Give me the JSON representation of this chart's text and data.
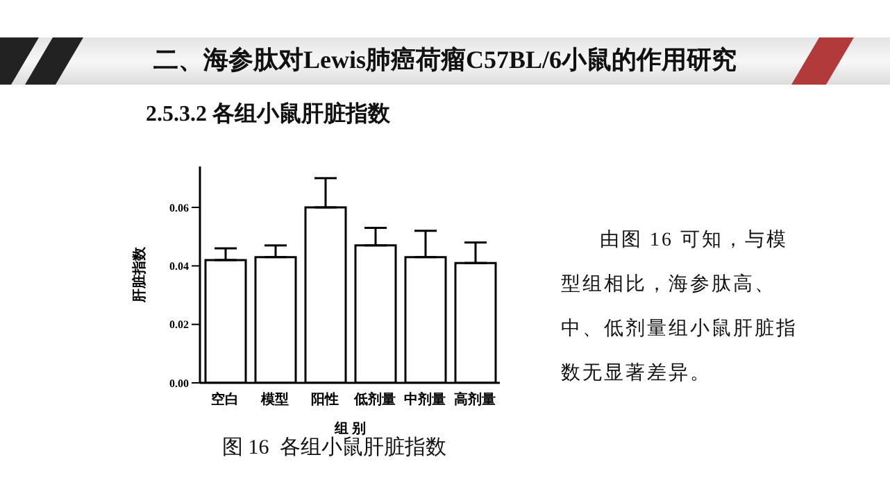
{
  "chart_data": {
    "type": "bar",
    "title": "二、海参肽对Lewis肺癌荷瘤C57BL/6小鼠的作用研究",
    "subtitle": "2.5.3.2 各组小鼠肝脏指数",
    "xlabel": "组 别",
    "ylabel": "肝脏指数",
    "categories": [
      "空白",
      "模型",
      "阳性",
      "低剂量",
      "中剂量",
      "高剂量"
    ],
    "values": [
      0.042,
      0.043,
      0.06,
      0.047,
      0.043,
      0.041
    ],
    "errors": [
      [
        0.042,
        0.046
      ],
      [
        0.043,
        0.047
      ],
      [
        0.06,
        0.07
      ],
      [
        0.047,
        0.053
      ],
      [
        0.043,
        0.052
      ],
      [
        0.041,
        0.048
      ]
    ],
    "color": "#ffffff",
    "ylim": [
      0,
      0.074
    ],
    "yticks": [
      {
        "value": 0,
        "label": "0.00"
      },
      {
        "value": 0.02,
        "label": "0.02"
      },
      {
        "value": 0.04,
        "label": "0.04"
      },
      {
        "value": 0.06,
        "label": "0.06"
      }
    ],
    "grid": false,
    "legend": false,
    "annotations": [
      "图 16  各组小鼠肝脏指数",
      "由图 16 可知，与模型组相比，海参肽高、中、低剂量组小鼠肝脏指数无显著差异。"
    ]
  }
}
